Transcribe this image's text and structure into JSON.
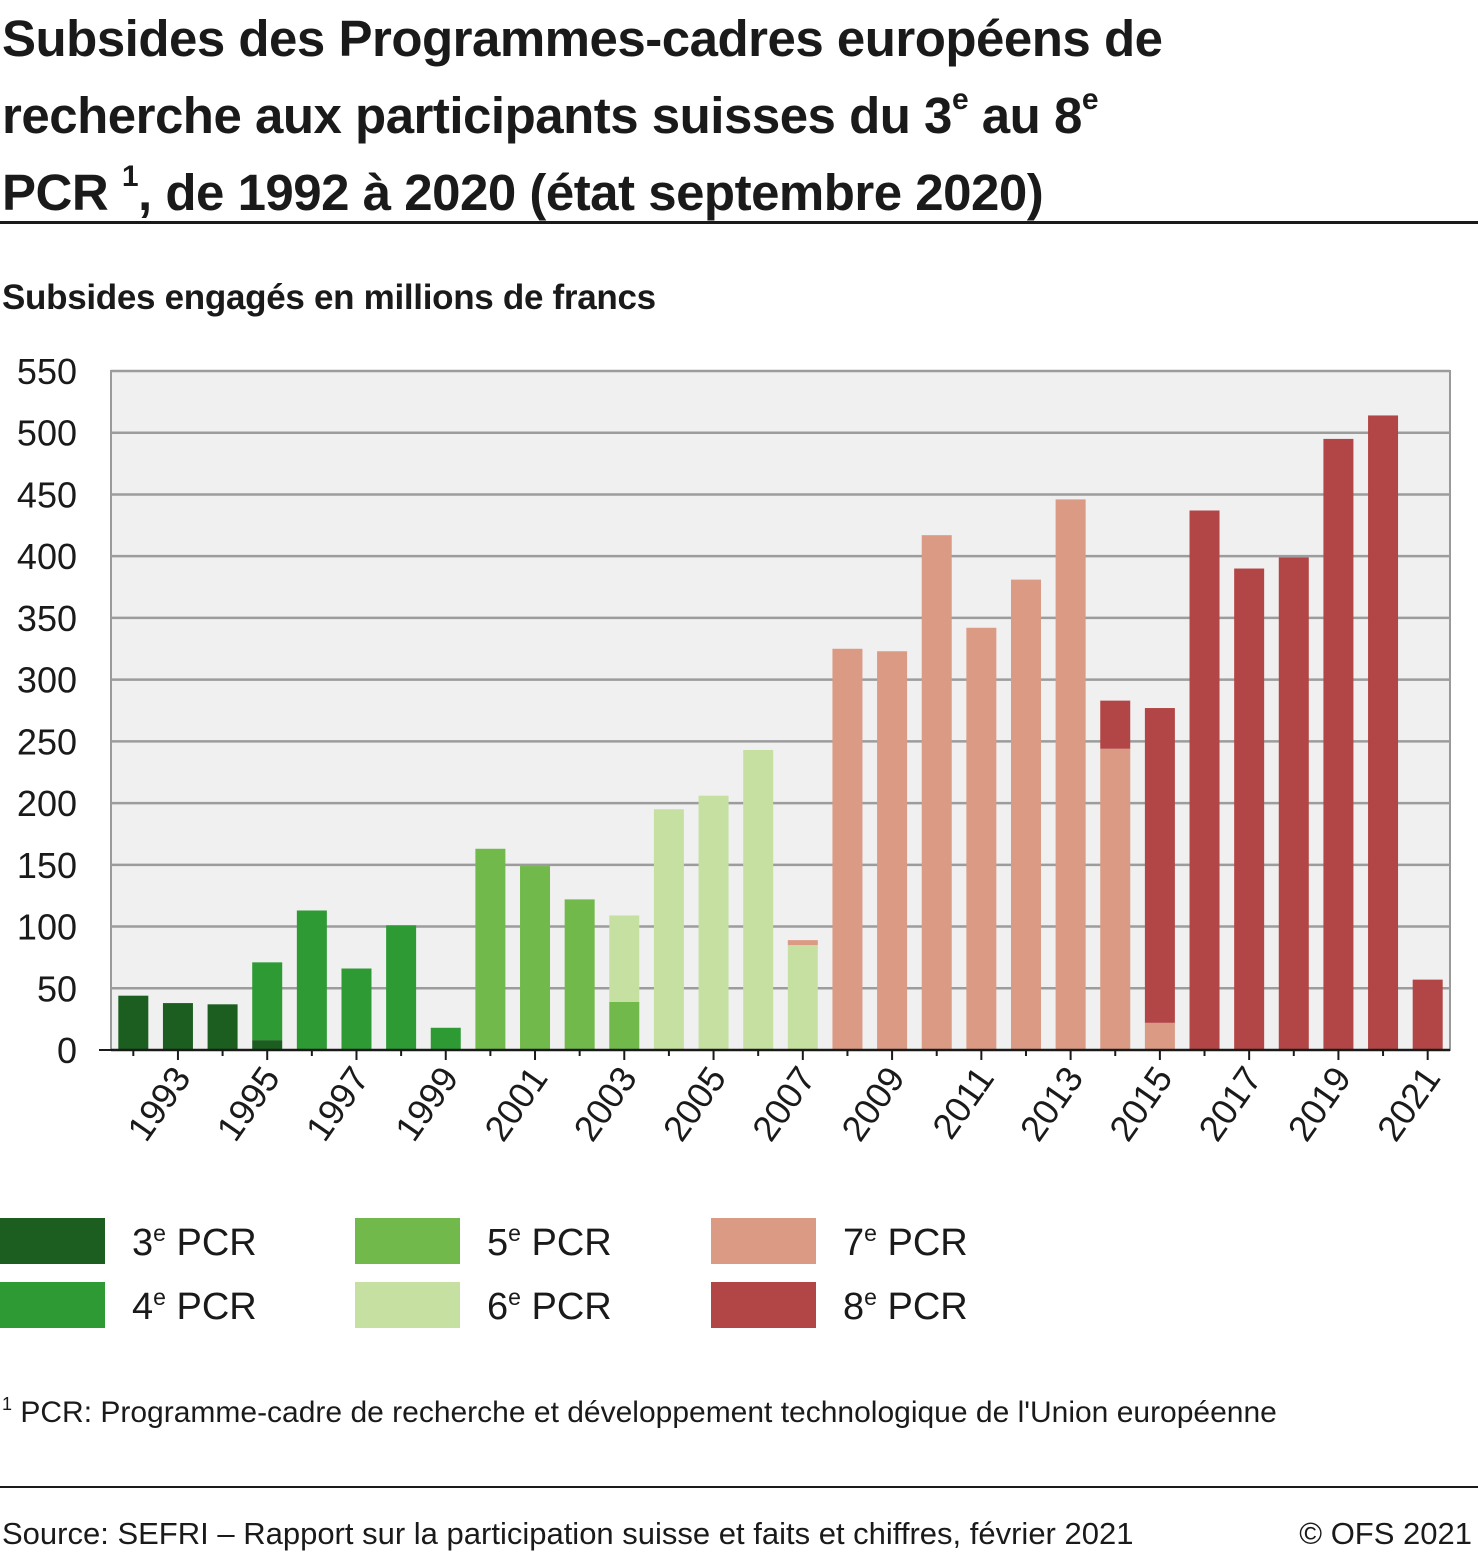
{
  "title": {
    "line1": "Subsides des Programmes-cadres européens de",
    "line2_a": "recherche aux participants suisses du 3",
    "line2_sup1": "e",
    "line2_b": " au 8",
    "line2_sup2": "e",
    "line3_a": "PCR ",
    "line3_sup": "1",
    "line3_b": ", de 1992 à 2020 (état septembre 2020)"
  },
  "subtitle": "Subsides engagés en millions de francs",
  "legend": [
    {
      "pre": "3",
      "sup": "e",
      "post": " PCR",
      "color": "#1b5e1f"
    },
    {
      "pre": "4",
      "sup": "e",
      "post": " PCR",
      "color": "#2e9a33"
    },
    {
      "pre": "5",
      "sup": "e",
      "post": " PCR",
      "color": "#72b94c"
    },
    {
      "pre": "6",
      "sup": "e",
      "post": " PCR",
      "color": "#c6e0a2"
    },
    {
      "pre": "7",
      "sup": "e",
      "post": " PCR",
      "color": "#da9a84"
    },
    {
      "pre": "8",
      "sup": "e",
      "post": " PCR",
      "color": "#b24646"
    }
  ],
  "footnote": {
    "sup": "1",
    "text": " PCR: Programme-cadre de recherche et développement technologique de l'Union européenne"
  },
  "source": "Source: SEFRI – Rapport sur la participation suisse et faits et chiffres, février 2021",
  "copyright": "© OFS 2021",
  "chart_data": {
    "type": "bar",
    "stacked": true,
    "ylim": [
      0,
      550
    ],
    "yticks": [
      0,
      50,
      100,
      150,
      200,
      250,
      300,
      350,
      400,
      450,
      500,
      550
    ],
    "xtick_labels": [
      "1993",
      "1995",
      "1997",
      "1999",
      "2001",
      "2003",
      "2005",
      "2007",
      "2009",
      "2011",
      "2013",
      "2015",
      "2017",
      "2019",
      "2021"
    ],
    "grid": true,
    "legend_position": "bottom",
    "categories": [
      "1992",
      "1993",
      "1994",
      "1995",
      "1996",
      "1997",
      "1998",
      "1999",
      "2000",
      "2001",
      "2002",
      "2003",
      "2004",
      "2005",
      "2006",
      "2007",
      "2008",
      "2009",
      "2010",
      "2011",
      "2012",
      "2013",
      "2014",
      "2015",
      "2016",
      "2017",
      "2018",
      "2019",
      "2020",
      "2021"
    ],
    "series": [
      {
        "name": "3e PCR",
        "color": "#1b5e1f",
        "values": [
          44,
          38,
          37,
          8,
          0,
          0,
          0,
          0,
          0,
          0,
          0,
          0,
          0,
          0,
          0,
          0,
          0,
          0,
          0,
          0,
          0,
          0,
          0,
          0,
          0,
          0,
          0,
          0,
          0,
          0
        ]
      },
      {
        "name": "4e PCR",
        "color": "#2e9a33",
        "values": [
          0,
          0,
          0,
          63,
          113,
          66,
          101,
          18,
          0,
          0,
          0,
          0,
          0,
          0,
          0,
          0,
          0,
          0,
          0,
          0,
          0,
          0,
          0,
          0,
          0,
          0,
          0,
          0,
          0,
          0
        ]
      },
      {
        "name": "5e PCR",
        "color": "#72b94c",
        "values": [
          0,
          0,
          0,
          0,
          0,
          0,
          0,
          0,
          163,
          149,
          122,
          39,
          0,
          0,
          0,
          0,
          0,
          0,
          0,
          0,
          0,
          0,
          0,
          0,
          0,
          0,
          0,
          0,
          0,
          0
        ]
      },
      {
        "name": "6e PCR",
        "color": "#c6e0a2",
        "values": [
          0,
          0,
          0,
          0,
          0,
          0,
          0,
          0,
          0,
          0,
          0,
          70,
          195,
          206,
          243,
          85,
          0,
          0,
          0,
          0,
          0,
          0,
          0,
          0,
          0,
          0,
          0,
          0,
          0,
          0
        ]
      },
      {
        "name": "7e PCR",
        "color": "#da9a84",
        "values": [
          0,
          0,
          0,
          0,
          0,
          0,
          0,
          0,
          0,
          0,
          0,
          0,
          0,
          0,
          0,
          4,
          325,
          323,
          417,
          342,
          381,
          446,
          244,
          22,
          0,
          0,
          0,
          0,
          0,
          0
        ]
      },
      {
        "name": "8e PCR",
        "color": "#b24646",
        "values": [
          0,
          0,
          0,
          0,
          0,
          0,
          0,
          0,
          0,
          0,
          0,
          0,
          0,
          0,
          0,
          0,
          0,
          0,
          0,
          0,
          0,
          0,
          39,
          255,
          437,
          390,
          399,
          495,
          514,
          57
        ]
      }
    ]
  }
}
